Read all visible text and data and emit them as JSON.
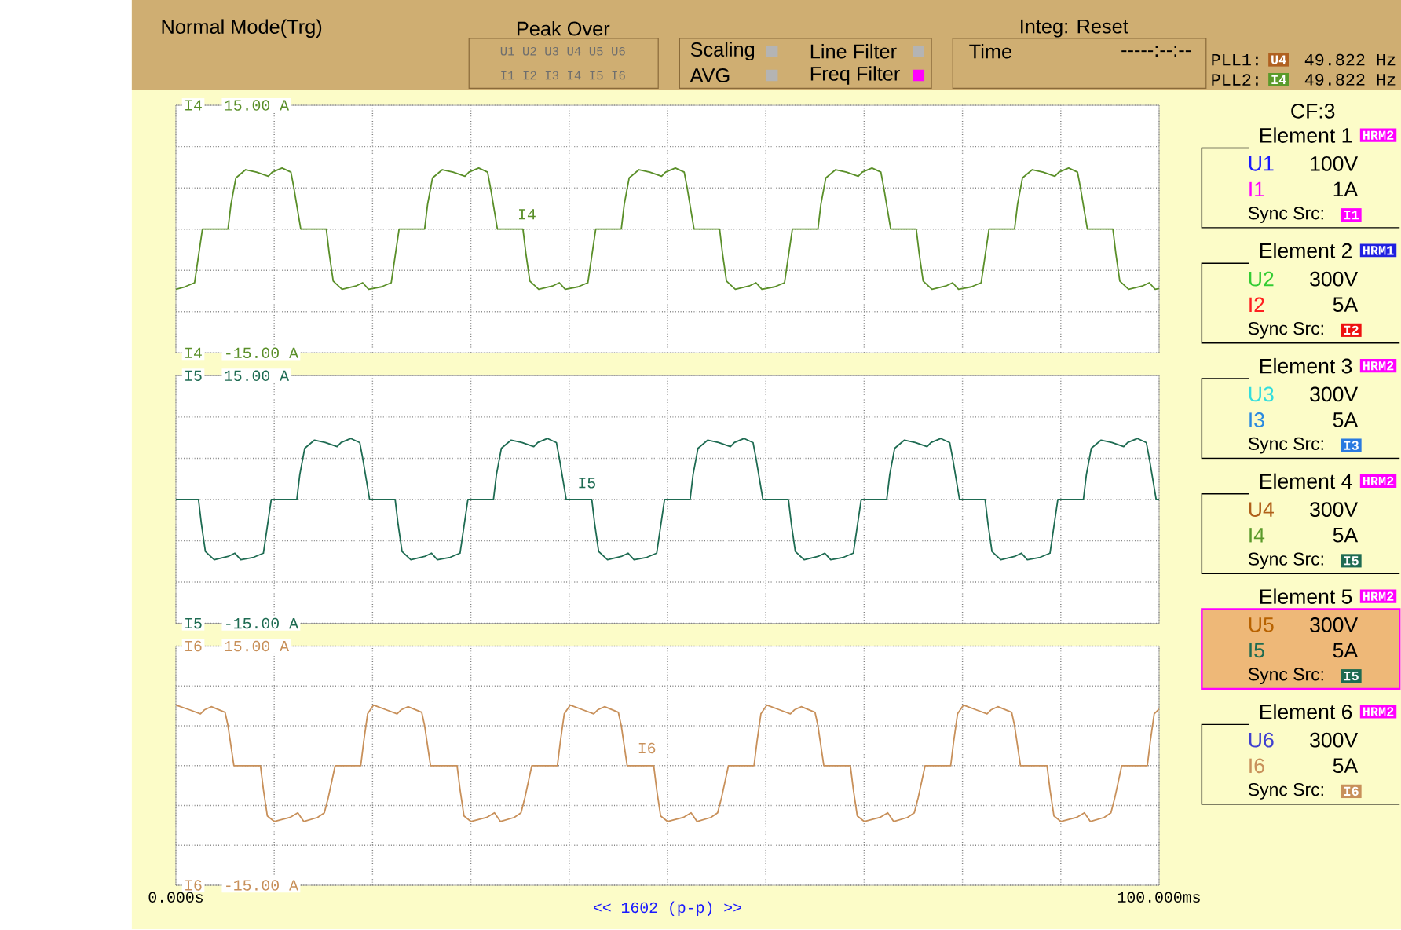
{
  "chart_data": [
    {
      "type": "line",
      "xlim": [
        0,
        100
      ],
      "ylim": [
        -15,
        15
      ],
      "tick_labels": "y",
      "grid": true,
      "xticks": [
        {
          "value": 0,
          "label": null
        },
        {
          "value": 10,
          "label": null
        },
        {
          "value": 20,
          "label": null
        },
        {
          "value": 30,
          "label": null
        },
        {
          "value": 40,
          "label": null
        },
        {
          "value": 50,
          "label": null
        },
        {
          "value": 60,
          "label": null
        },
        {
          "value": 70,
          "label": null
        },
        {
          "value": 80,
          "label": null
        },
        {
          "value": 90,
          "label": null
        },
        {
          "value": 100,
          "label": null
        }
      ],
      "yticks": [
        {
          "value": -15,
          "label": "-15.00 A"
        },
        {
          "value": -10,
          "label": null
        },
        {
          "value": -5,
          "label": null
        },
        {
          "value": 0,
          "label": null
        },
        {
          "value": 5,
          "label": null
        },
        {
          "value": 10,
          "label": null
        },
        {
          "value": 15,
          "label": "15.00 A"
        }
      ],
      "annotations": [
        "I4",
        "I4"
      ],
      "series": [
        {
          "name": "I4",
          "color": "#5a8f29",
          "x": [
            0,
            0.9,
            1.9,
            2.7,
            5.3,
            5.6,
            6.1,
            7.1,
            8.2,
            9.4,
            9.8,
            10.8,
            11.7,
            12.0,
            12.7,
            15.3,
            15.6,
            16.0,
            16.9,
            18.3,
            19.0,
            19.6,
            20.9,
            21.9,
            22.7,
            25.3,
            25.6,
            26.1,
            27.1,
            28.2,
            29.4,
            29.8,
            30.8,
            31.7,
            32.0,
            32.7,
            35.3,
            35.6,
            36.0,
            36.9,
            38.3,
            39.0,
            39.6,
            40.9,
            41.9,
            42.7,
            45.3,
            45.6,
            46.1,
            47.1,
            48.2,
            49.4,
            49.8,
            50.8,
            51.7,
            52.0,
            52.7,
            55.3,
            55.6,
            56.0,
            56.9,
            58.3,
            59.0,
            59.6,
            60.9,
            61.9,
            62.7,
            65.3,
            65.6,
            66.1,
            67.1,
            68.2,
            69.4,
            69.8,
            70.8,
            71.7,
            72.0,
            72.7,
            75.3,
            75.6,
            76.0,
            76.9,
            78.3,
            79.0,
            79.6,
            80.9,
            81.9,
            82.7,
            85.3,
            85.6,
            86.1,
            87.1,
            88.2,
            89.4,
            89.8,
            90.8,
            91.7,
            92.0,
            92.7,
            95.3,
            95.6,
            96.0,
            96.9,
            98.3,
            99.0,
            99.6,
            100
          ],
          "values": [
            -7.3,
            -7.0,
            -6.5,
            0,
            0,
            3.0,
            6.2,
            7.2,
            6.9,
            6.4,
            6.9,
            7.4,
            6.9,
            5.0,
            0,
            0,
            -3.0,
            -6.3,
            -7.3,
            -6.9,
            -6.5,
            -7.3,
            -7.0,
            -6.5,
            0,
            0,
            3.0,
            6.2,
            7.2,
            6.9,
            6.4,
            6.9,
            7.4,
            6.9,
            5.0,
            0,
            0,
            -3.0,
            -6.3,
            -7.3,
            -6.9,
            -6.5,
            -7.3,
            -7.0,
            -6.5,
            0,
            0,
            3.0,
            6.2,
            7.2,
            6.9,
            6.4,
            6.9,
            7.4,
            6.9,
            5.0,
            0,
            0,
            -3.0,
            -6.3,
            -7.3,
            -6.9,
            -6.5,
            -7.3,
            -7.0,
            -6.5,
            0,
            0,
            3.0,
            6.2,
            7.2,
            6.9,
            6.4,
            6.9,
            7.4,
            6.9,
            5.0,
            0,
            0,
            -3.0,
            -6.3,
            -7.3,
            -6.9,
            -6.5,
            -7.3,
            -7.0,
            -6.5,
            0,
            0,
            3.0,
            6.2,
            7.2,
            6.9,
            6.4,
            6.9,
            7.4,
            6.9,
            5.0,
            0,
            0,
            -3.0,
            -6.3,
            -7.3,
            -6.9,
            -6.5,
            -7.3,
            -7.2
          ]
        }
      ]
    },
    {
      "type": "line",
      "xlim": [
        0,
        100
      ],
      "ylim": [
        -15,
        15
      ],
      "tick_labels": "y",
      "grid": true,
      "xticks": [
        {
          "value": 0,
          "label": null
        },
        {
          "value": 10,
          "label": null
        },
        {
          "value": 20,
          "label": null
        },
        {
          "value": 30,
          "label": null
        },
        {
          "value": 40,
          "label": null
        },
        {
          "value": 50,
          "label": null
        },
        {
          "value": 60,
          "label": null
        },
        {
          "value": 70,
          "label": null
        },
        {
          "value": 80,
          "label": null
        },
        {
          "value": 90,
          "label": null
        },
        {
          "value": 100,
          "label": null
        }
      ],
      "yticks": [
        {
          "value": -15,
          "label": "-15.00 A"
        },
        {
          "value": -10,
          "label": null
        },
        {
          "value": -5,
          "label": null
        },
        {
          "value": 0,
          "label": null
        },
        {
          "value": 5,
          "label": null
        },
        {
          "value": 10,
          "label": null
        },
        {
          "value": 15,
          "label": "15.00 A"
        }
      ],
      "annotations": [
        "I5",
        "I5"
      ],
      "series": [
        {
          "name": "I5",
          "color": "#1e6b52",
          "x": [
            0,
            2.3,
            2.6,
            3.0,
            3.9,
            5.3,
            6.0,
            6.6,
            7.9,
            8.9,
            9.7,
            12.3,
            12.6,
            13.1,
            14.1,
            15.2,
            16.4,
            16.8,
            17.8,
            18.7,
            19.0,
            19.7,
            22.3,
            22.6,
            23.0,
            23.9,
            25.3,
            26.0,
            26.6,
            27.9,
            28.9,
            29.7,
            32.3,
            32.6,
            33.1,
            34.1,
            35.2,
            36.4,
            36.8,
            37.8,
            38.7,
            39.0,
            39.7,
            42.3,
            42.6,
            43.0,
            43.9,
            45.3,
            46.0,
            46.6,
            47.9,
            48.9,
            49.7,
            52.3,
            52.6,
            53.1,
            54.1,
            55.2,
            56.4,
            56.8,
            57.8,
            58.7,
            59.0,
            59.7,
            62.3,
            62.6,
            63.0,
            63.9,
            65.3,
            66.0,
            66.6,
            67.9,
            68.9,
            69.7,
            72.3,
            72.6,
            73.1,
            74.1,
            75.2,
            76.4,
            76.8,
            77.8,
            78.7,
            79.0,
            79.7,
            82.3,
            82.6,
            83.0,
            83.9,
            85.3,
            86.0,
            86.6,
            87.9,
            88.9,
            89.7,
            92.3,
            92.6,
            93.1,
            94.1,
            95.2,
            96.4,
            96.8,
            97.8,
            98.7,
            99.0,
            99.7,
            100
          ],
          "values": [
            0,
            0,
            -3.0,
            -6.3,
            -7.3,
            -6.9,
            -6.5,
            -7.3,
            -7.0,
            -6.5,
            0,
            0,
            3.0,
            6.2,
            7.2,
            6.9,
            6.4,
            6.9,
            7.4,
            6.9,
            5.0,
            0,
            0,
            -3.0,
            -6.3,
            -7.3,
            -6.9,
            -6.5,
            -7.3,
            -7.0,
            -6.5,
            0,
            0,
            3.0,
            6.2,
            7.2,
            6.9,
            6.4,
            6.9,
            7.4,
            6.9,
            5.0,
            0,
            0,
            -3.0,
            -6.3,
            -7.3,
            -6.9,
            -6.5,
            -7.3,
            -7.0,
            -6.5,
            0,
            0,
            3.0,
            6.2,
            7.2,
            6.9,
            6.4,
            6.9,
            7.4,
            6.9,
            5.0,
            0,
            0,
            -3.0,
            -6.3,
            -7.3,
            -6.9,
            -6.5,
            -7.3,
            -7.0,
            -6.5,
            0,
            0,
            3.0,
            6.2,
            7.2,
            6.9,
            6.4,
            6.9,
            7.4,
            6.9,
            5.0,
            0,
            0,
            -3.0,
            -6.3,
            -7.3,
            -6.9,
            -6.5,
            -7.3,
            -7.0,
            -6.5,
            0,
            0,
            3.0,
            6.2,
            7.2,
            6.9,
            6.4,
            6.9,
            7.4,
            6.9,
            5.0,
            0,
            0
          ]
        }
      ]
    },
    {
      "type": "line",
      "xlim": [
        0,
        100
      ],
      "ylim": [
        -15,
        15
      ],
      "grid": true,
      "xticks": [
        {
          "value": 0,
          "label": "0.000s"
        },
        {
          "value": 10,
          "label": null
        },
        {
          "value": 20,
          "label": null
        },
        {
          "value": 30,
          "label": null
        },
        {
          "value": 40,
          "label": null
        },
        {
          "value": 50,
          "label": null
        },
        {
          "value": 60,
          "label": null
        },
        {
          "value": 70,
          "label": null
        },
        {
          "value": 80,
          "label": null
        },
        {
          "value": 90,
          "label": null
        },
        {
          "value": 100,
          "label": "100.000ms"
        }
      ],
      "yticks": [
        {
          "value": -15,
          "label": "-15.00 A"
        },
        {
          "value": -10,
          "label": null
        },
        {
          "value": -5,
          "label": null
        },
        {
          "value": 0,
          "label": null
        },
        {
          "value": 5,
          "label": null
        },
        {
          "value": 10,
          "label": null
        },
        {
          "value": 15,
          "label": "15.00 A"
        }
      ],
      "annotations": [
        "I6",
        "I6",
        "<< 1602 (p-p) >>"
      ],
      "series": [
        {
          "name": "I6",
          "color": "#c8905a",
          "x": [
            0,
            1.4,
            2.5,
            2.9,
            3.6,
            5.0,
            5.3,
            5.9,
            8.6,
            8.9,
            9.3,
            10.0,
            11.6,
            12.4,
            13.0,
            14.4,
            15.1,
            15.5,
            16.2,
            18.8,
            19.1,
            19.5,
            20.1,
            21.4,
            22.5,
            22.9,
            23.6,
            25.0,
            25.3,
            25.9,
            28.6,
            28.9,
            29.3,
            30.0,
            31.6,
            32.4,
            33.0,
            34.4,
            35.1,
            35.5,
            36.2,
            38.8,
            39.1,
            39.5,
            40.1,
            41.4,
            42.5,
            42.9,
            43.6,
            45.0,
            45.3,
            45.9,
            48.6,
            48.9,
            49.3,
            50.0,
            51.6,
            52.4,
            53.0,
            54.4,
            55.1,
            55.5,
            56.2,
            58.8,
            59.1,
            59.5,
            60.1,
            61.4,
            62.5,
            62.9,
            63.6,
            65.0,
            65.3,
            65.9,
            68.6,
            68.9,
            69.3,
            70.0,
            71.6,
            72.4,
            73.0,
            74.4,
            75.1,
            75.5,
            76.2,
            78.8,
            79.1,
            79.5,
            80.1,
            81.4,
            82.5,
            82.9,
            83.6,
            85.0,
            85.3,
            85.9,
            88.6,
            88.9,
            89.3,
            90.0,
            91.6,
            92.4,
            93.0,
            94.4,
            95.1,
            95.5,
            96.2,
            98.8,
            99.1,
            99.5,
            100
          ],
          "values": [
            7.6,
            7.0,
            6.5,
            7.0,
            7.4,
            6.7,
            5.0,
            0,
            0,
            -3.0,
            -6.3,
            -7.0,
            -6.5,
            -5.9,
            -7.0,
            -6.5,
            -5.9,
            -4.0,
            0,
            0,
            3.0,
            6.5,
            7.6,
            7.0,
            6.5,
            7.0,
            7.4,
            6.7,
            5.0,
            0,
            0,
            -3.0,
            -6.3,
            -7.0,
            -6.5,
            -5.9,
            -7.0,
            -6.5,
            -5.9,
            -4.0,
            0,
            0,
            3.0,
            6.5,
            7.6,
            7.0,
            6.5,
            7.0,
            7.4,
            6.7,
            5.0,
            0,
            0,
            -3.0,
            -6.3,
            -7.0,
            -6.5,
            -5.9,
            -7.0,
            -6.5,
            -5.9,
            -4.0,
            0,
            0,
            3.0,
            6.5,
            7.6,
            7.0,
            6.5,
            7.0,
            7.4,
            6.7,
            5.0,
            0,
            0,
            -3.0,
            -6.3,
            -7.0,
            -6.5,
            -5.9,
            -7.0,
            -6.5,
            -5.9,
            -4.0,
            0,
            0,
            3.0,
            6.5,
            7.6,
            7.0,
            6.5,
            7.0,
            7.4,
            6.7,
            5.0,
            0,
            0,
            -3.0,
            -6.3,
            -7.0,
            -6.5,
            -5.9,
            -7.0,
            -6.5,
            -5.9,
            -4.0,
            0,
            0,
            3.0,
            6.5,
            7.1
          ]
        }
      ]
    },
    {
      "type": "other",
      "annotations": [
        "Normal Mode(Trg)",
        "Peak Over",
        "U1 U2 U3 U4 U5 U6",
        "I1 I2 I3 I4 I5 I6",
        "Scaling",
        "AVG",
        "Line Filter",
        "Freq Filter",
        "Integ: Reset",
        "Time",
        "-----:--:--",
        "PLL1:",
        "U4",
        "49.822 Hz",
        "PLL2:",
        "I4",
        "49.822 Hz",
        "CF:3",
        "Element 1",
        "HRM2",
        "U1",
        "100V",
        "I1",
        "1A",
        "Sync Src:",
        "I1",
        "Element 2",
        "HRM1",
        "U2",
        "300V",
        "I2",
        "5A",
        "Sync Src:",
        "I2",
        "Element 3",
        "HRM2",
        "U3",
        "300V",
        "I3",
        "5A",
        "Sync Src:",
        "I3",
        "Element 4",
        "HRM2",
        "U4",
        "300V",
        "I4",
        "5A",
        "Sync Src:",
        "I5",
        "Element 5",
        "HRM2",
        "U5",
        "300V",
        "I5",
        "5A",
        "Sync Src:",
        "I5",
        "Element 6",
        "HRM2",
        "U6",
        "300V",
        "I6",
        "5A",
        "Sync Src:",
        "I6"
      ]
    }
  ]
}
